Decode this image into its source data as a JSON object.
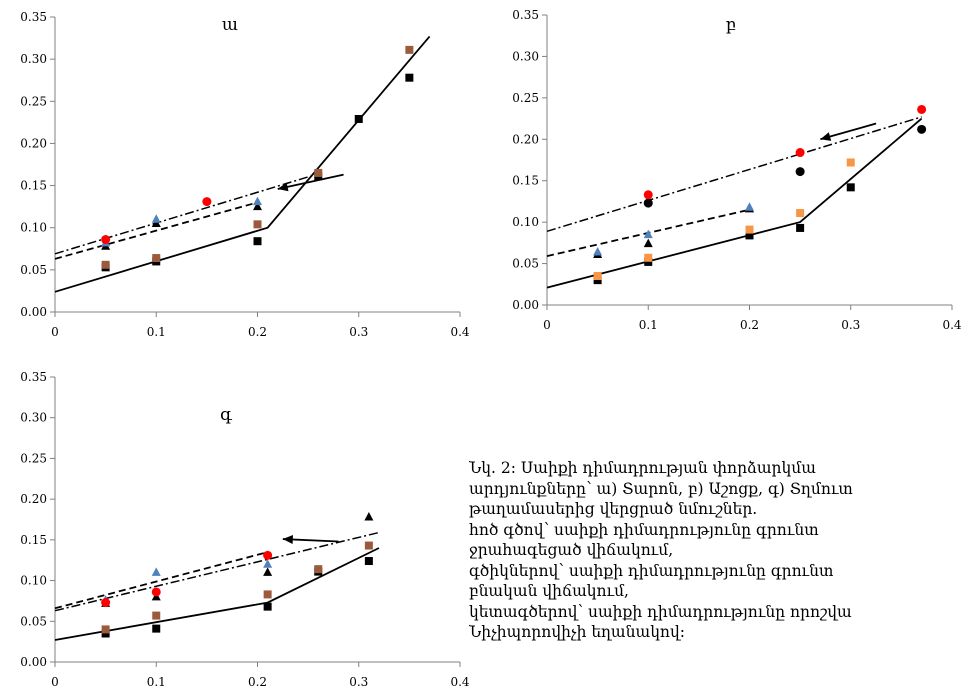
{
  "colors": {
    "black": "#000000",
    "brown": "#9c5a3c",
    "blue": "#4f81bd",
    "red": "#ff0000",
    "orange": "#f79646",
    "axis": "#808080"
  },
  "chart_data": [
    {
      "type": "scatter",
      "title": "ա",
      "xlim": [
        0,
        0.4
      ],
      "ylim": [
        0,
        0.35
      ],
      "xticks": [
        "0",
        "0.1",
        "0.2",
        "0.3",
        "0.4"
      ],
      "yticks": [
        "0.00",
        "0.05",
        "0.10",
        "0.15",
        "0.20",
        "0.25",
        "0.30",
        "0.35"
      ],
      "series": [
        {
          "marker": "square",
          "color": "#000000",
          "points": [
            [
              0.05,
              0.053
            ],
            [
              0.1,
              0.06
            ],
            [
              0.2,
              0.084
            ],
            [
              0.26,
              0.161
            ],
            [
              0.3,
              0.229
            ],
            [
              0.35,
              0.278
            ]
          ]
        },
        {
          "marker": "square",
          "color": "#9c5a3c",
          "points": [
            [
              0.05,
              0.056
            ],
            [
              0.1,
              0.064
            ],
            [
              0.2,
              0.104
            ],
            [
              0.26,
              0.165
            ],
            [
              0.35,
              0.311
            ]
          ]
        },
        {
          "marker": "triangle",
          "color": "#000000",
          "points": [
            [
              0.05,
              0.078
            ],
            [
              0.1,
              0.105
            ],
            [
              0.2,
              0.125
            ]
          ]
        },
        {
          "marker": "triangle",
          "color": "#4f81bd",
          "points": [
            [
              0.05,
              0.082
            ],
            [
              0.1,
              0.11
            ],
            [
              0.2,
              0.131
            ]
          ]
        },
        {
          "marker": "circle",
          "color": "#ff0000",
          "points": [
            [
              0.05,
              0.086
            ],
            [
              0.15,
              0.131
            ]
          ]
        }
      ],
      "lines": [
        {
          "style": "solid",
          "points": [
            [
              0,
              0.024
            ],
            [
              0.21,
              0.1
            ],
            [
              0.37,
              0.327
            ]
          ]
        },
        {
          "style": "dashed",
          "points": [
            [
              0,
              0.063
            ],
            [
              0.2,
              0.13
            ]
          ]
        },
        {
          "style": "dashdot",
          "points": [
            [
              0,
              0.069
            ],
            [
              0.26,
              0.164
            ]
          ]
        }
      ],
      "arrow": {
        "from": [
          0.285,
          0.163
        ],
        "to": [
          0.22,
          0.146
        ]
      }
    },
    {
      "type": "scatter",
      "title": "բ",
      "xlim": [
        0,
        0.4
      ],
      "ylim": [
        0,
        0.35
      ],
      "xticks": [
        "0",
        "0.1",
        "0.2",
        "0.3",
        "0.4"
      ],
      "yticks": [
        "0.00",
        "0.05",
        "0.10",
        "0.15",
        "0.20",
        "0.25",
        "0.30",
        "0.35"
      ],
      "series": [
        {
          "marker": "square",
          "color": "#000000",
          "points": [
            [
              0.05,
              0.03
            ],
            [
              0.1,
              0.052
            ],
            [
              0.2,
              0.084
            ],
            [
              0.25,
              0.093
            ],
            [
              0.3,
              0.142
            ]
          ]
        },
        {
          "marker": "square",
          "color": "#f79646",
          "points": [
            [
              0.05,
              0.035
            ],
            [
              0.1,
              0.057
            ],
            [
              0.2,
              0.091
            ],
            [
              0.25,
              0.111
            ],
            [
              0.3,
              0.172
            ]
          ]
        },
        {
          "marker": "triangle",
          "color": "#000000",
          "points": [
            [
              0.05,
              0.061
            ],
            [
              0.1,
              0.074
            ],
            [
              0.2,
              0.116
            ]
          ]
        },
        {
          "marker": "triangle",
          "color": "#4f81bd",
          "points": [
            [
              0.05,
              0.064
            ],
            [
              0.1,
              0.085
            ],
            [
              0.2,
              0.118
            ]
          ]
        },
        {
          "marker": "circle",
          "color": "#000000",
          "points": [
            [
              0.1,
              0.123
            ],
            [
              0.25,
              0.161
            ],
            [
              0.37,
              0.212
            ]
          ]
        },
        {
          "marker": "circle",
          "color": "#ff0000",
          "points": [
            [
              0.1,
              0.133
            ],
            [
              0.25,
              0.184
            ],
            [
              0.37,
              0.236
            ]
          ]
        }
      ],
      "lines": [
        {
          "style": "solid",
          "points": [
            [
              0,
              0.021
            ],
            [
              0.25,
              0.1
            ],
            [
              0.37,
              0.225
            ]
          ]
        },
        {
          "style": "dashed",
          "points": [
            [
              0,
              0.059
            ],
            [
              0.2,
              0.115
            ]
          ]
        },
        {
          "style": "dashdot",
          "points": [
            [
              0,
              0.089
            ],
            [
              0.37,
              0.227
            ]
          ]
        }
      ],
      "arrow": {
        "from": [
          0.325,
          0.219
        ],
        "to": [
          0.27,
          0.2
        ]
      }
    },
    {
      "type": "scatter",
      "title": "գ",
      "xlim": [
        0,
        0.4
      ],
      "ylim": [
        0,
        0.35
      ],
      "xticks": [
        "0",
        "0.1",
        "0.2",
        "0.3",
        "0.4"
      ],
      "yticks": [
        "0.00",
        "0.05",
        "0.10",
        "0.15",
        "0.20",
        "0.25",
        "0.30",
        "0.35"
      ],
      "series": [
        {
          "marker": "square",
          "color": "#000000",
          "points": [
            [
              0.05,
              0.035
            ],
            [
              0.1,
              0.041
            ],
            [
              0.21,
              0.068
            ],
            [
              0.26,
              0.111
            ],
            [
              0.31,
              0.124
            ]
          ]
        },
        {
          "marker": "square",
          "color": "#9c5a3c",
          "points": [
            [
              0.05,
              0.04
            ],
            [
              0.1,
              0.057
            ],
            [
              0.21,
              0.083
            ],
            [
              0.26,
              0.114
            ],
            [
              0.31,
              0.143
            ]
          ]
        },
        {
          "marker": "triangle",
          "color": "#000000",
          "points": [
            [
              0.05,
              0.072
            ],
            [
              0.1,
              0.08
            ],
            [
              0.21,
              0.11
            ],
            [
              0.31,
              0.178
            ]
          ]
        },
        {
          "marker": "triangle",
          "color": "#4f81bd",
          "points": [
            [
              0.05,
              0.076
            ],
            [
              0.1,
              0.11
            ],
            [
              0.21,
              0.12
            ]
          ]
        },
        {
          "marker": "circle",
          "color": "#ff0000",
          "points": [
            [
              0.05,
              0.073
            ],
            [
              0.1,
              0.086
            ],
            [
              0.21,
              0.131
            ]
          ]
        }
      ],
      "lines": [
        {
          "style": "solid",
          "points": [
            [
              0,
              0.027
            ],
            [
              0.21,
              0.073
            ],
            [
              0.32,
              0.14
            ]
          ]
        },
        {
          "style": "dashed",
          "points": [
            [
              0,
              0.066
            ],
            [
              0.21,
              0.135
            ]
          ]
        },
        {
          "style": "dashdot",
          "points": [
            [
              0,
              0.063
            ],
            [
              0.32,
              0.159
            ]
          ]
        }
      ],
      "arrow": {
        "from": [
          0.28,
          0.148
        ],
        "to": [
          0.225,
          0.151
        ]
      }
    }
  ],
  "caption": {
    "line1": "Նկ. 2: Սաիքի դիմադրության փորձարկմա",
    "line2": "արդյունքները՝ ա) Տարոն, բ) Աշոցք, գ) Տղմուտ",
    "line3": "թաղամասերից վերցրած նմուշներ.",
    "line4": "հոծ գծով՝ սաիքի դիմադրությունը գրունտ",
    "line5": "ջրահագեցած վիճակում,",
    "line6": "գծիկներով՝ սաիքի դիմադրությունը գրունտ",
    "line7": "բնական վիճակում,",
    "line8": "կետագծերով՝ սաիքի դիմադրությունը որոշվա",
    "line9": "Նիչիպորովիչի եղանակով:"
  }
}
